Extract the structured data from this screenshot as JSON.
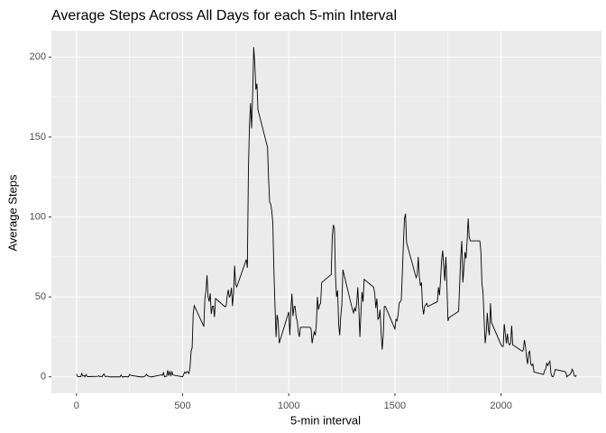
{
  "chart_data": {
    "type": "line",
    "title": "Average Steps Across All Days for each 5-min Interval",
    "xlabel": "5-min interval",
    "ylabel": "Average Steps",
    "x": [
      0,
      5,
      10,
      15,
      20,
      25,
      30,
      35,
      40,
      45,
      50,
      55,
      100,
      105,
      110,
      115,
      120,
      125,
      130,
      135,
      140,
      145,
      150,
      155,
      200,
      205,
      210,
      215,
      220,
      225,
      230,
      235,
      240,
      245,
      250,
      255,
      300,
      305,
      310,
      315,
      320,
      325,
      330,
      335,
      340,
      345,
      350,
      355,
      400,
      405,
      410,
      415,
      420,
      425,
      430,
      435,
      440,
      445,
      450,
      455,
      500,
      505,
      510,
      515,
      520,
      525,
      530,
      535,
      540,
      545,
      550,
      555,
      600,
      605,
      610,
      615,
      620,
      625,
      630,
      635,
      640,
      645,
      650,
      655,
      700,
      705,
      710,
      715,
      720,
      725,
      730,
      735,
      740,
      745,
      750,
      755,
      800,
      805,
      810,
      815,
      820,
      825,
      830,
      835,
      840,
      845,
      850,
      855,
      900,
      905,
      910,
      915,
      920,
      925,
      930,
      935,
      940,
      945,
      950,
      955,
      1000,
      1005,
      1010,
      1015,
      1020,
      1025,
      1030,
      1035,
      1040,
      1045,
      1050,
      1055,
      1100,
      1105,
      1110,
      1115,
      1120,
      1125,
      1130,
      1135,
      1140,
      1145,
      1150,
      1155,
      1200,
      1205,
      1210,
      1215,
      1220,
      1225,
      1230,
      1235,
      1240,
      1245,
      1250,
      1255,
      1300,
      1305,
      1310,
      1315,
      1320,
      1325,
      1330,
      1335,
      1340,
      1345,
      1350,
      1355,
      1400,
      1405,
      1410,
      1415,
      1420,
      1425,
      1430,
      1435,
      1440,
      1445,
      1450,
      1455,
      1500,
      1505,
      1510,
      1515,
      1520,
      1525,
      1530,
      1535,
      1540,
      1545,
      1550,
      1555,
      1600,
      1605,
      1610,
      1615,
      1620,
      1625,
      1630,
      1635,
      1640,
      1645,
      1650,
      1655,
      1700,
      1705,
      1710,
      1715,
      1720,
      1725,
      1730,
      1735,
      1740,
      1745,
      1750,
      1755,
      1800,
      1805,
      1810,
      1815,
      1820,
      1825,
      1830,
      1835,
      1840,
      1845,
      1850,
      1855,
      1900,
      1905,
      1910,
      1915,
      1920,
      1925,
      1930,
      1935,
      1940,
      1945,
      1950,
      1955,
      2000,
      2005,
      2010,
      2015,
      2020,
      2025,
      2030,
      2035,
      2040,
      2045,
      2050,
      2055,
      2100,
      2105,
      2110,
      2115,
      2120,
      2125,
      2130,
      2135,
      2140,
      2145,
      2150,
      2155,
      2200,
      2205,
      2210,
      2215,
      2220,
      2225,
      2230,
      2235,
      2240,
      2245,
      2250,
      2255,
      2300,
      2305,
      2310,
      2315,
      2320,
      2325,
      2330,
      2335,
      2340,
      2345,
      2350,
      2355
    ],
    "series": [
      {
        "name": "Average Steps",
        "color": "#000000",
        "values": [
          1.7,
          0.3,
          0.1,
          0.15,
          0.08,
          2.1,
          0.5,
          0.87,
          0,
          1.5,
          0.3,
          0.13,
          0.3,
          0.7,
          0.15,
          0.34,
          0,
          1.1,
          1.8,
          0.17,
          0.23,
          0.38,
          0.26,
          0,
          0,
          0,
          1.1,
          0,
          0,
          0.13,
          0,
          0.23,
          0,
          0,
          1.5,
          0.94,
          0,
          0,
          0,
          0,
          0.2,
          0.6,
          1.6,
          0.6,
          0.5,
          0.08,
          0,
          0,
          1.2,
          0.9,
          2.6,
          0,
          0.3,
          0.36,
          4.1,
          0.66,
          3.5,
          0.83,
          3.1,
          1.1,
          0,
          1.6,
          3,
          2.2,
          3.3,
          3,
          2.1,
          6.1,
          16,
          18.3,
          39.5,
          44.5,
          31.5,
          49.3,
          53.8,
          63.5,
          50,
          47.1,
          52.2,
          39.3,
          44,
          44.2,
          37.4,
          49,
          43.8,
          44.4,
          50.5,
          54.5,
          49.9,
          51,
          55.7,
          44.3,
          52.3,
          69.5,
          57.8,
          56.2,
          73.4,
          68.2,
          129.4,
          157.5,
          171.2,
          155.4,
          177.3,
          206.2,
          195.9,
          179.6,
          183.4,
          167,
          143.5,
          124,
          109.1,
          108.1,
          103.7,
          96,
          66.2,
          45.2,
          24.8,
          38.8,
          35,
          21.1,
          40.6,
          26,
          42,
          52,
          38,
          44,
          44,
          37,
          35,
          28,
          25,
          31,
          31,
          30,
          21,
          25,
          28,
          26,
          33,
          50,
          42,
          45,
          46,
          59,
          64,
          88,
          95,
          93,
          63,
          50,
          54,
          33,
          26,
          38,
          45,
          67,
          42,
          40,
          43,
          41,
          46,
          56,
          43,
          25,
          40,
          53,
          47,
          61,
          56,
          52,
          43,
          49,
          36,
          37,
          42,
          28,
          17,
          26,
          44,
          44,
          30,
          36,
          35,
          39,
          46,
          47,
          48,
          65,
          83,
          99,
          102,
          84,
          62,
          64,
          75,
          63,
          57,
          59,
          44,
          39,
          44,
          45,
          46,
          44,
          47,
          56,
          51,
          61,
          73,
          79,
          69,
          60,
          75,
          57,
          35,
          37,
          41,
          58,
          75,
          85,
          59,
          68,
          78,
          74,
          85,
          99,
          87,
          85,
          85,
          78,
          58,
          53,
          36,
          21,
          27,
          40,
          30,
          26,
          46,
          34,
          20,
          19,
          19,
          33,
          27,
          21,
          27,
          21,
          20,
          21,
          32,
          20,
          16,
          17,
          23,
          19,
          12,
          8,
          15,
          16,
          8,
          7,
          8,
          3,
          1.5,
          4,
          4.8,
          8.5,
          7,
          8.7,
          9.8,
          2.2,
          0.3,
          0.1,
          1.6,
          4.6,
          3.3,
          2.8,
          0,
          0.8,
          1,
          1.6,
          2.6,
          4.7,
          3.3,
          0.6,
          0.2,
          1.1
        ]
      }
    ],
    "xlim": [
      -118,
      2473
    ],
    "xticks": [
      0,
      500,
      1000,
      1500,
      2000
    ],
    "ylim": [
      -10.3,
      216.5
    ],
    "yticks": [
      0,
      50,
      100,
      150,
      200
    ],
    "grid": true
  }
}
